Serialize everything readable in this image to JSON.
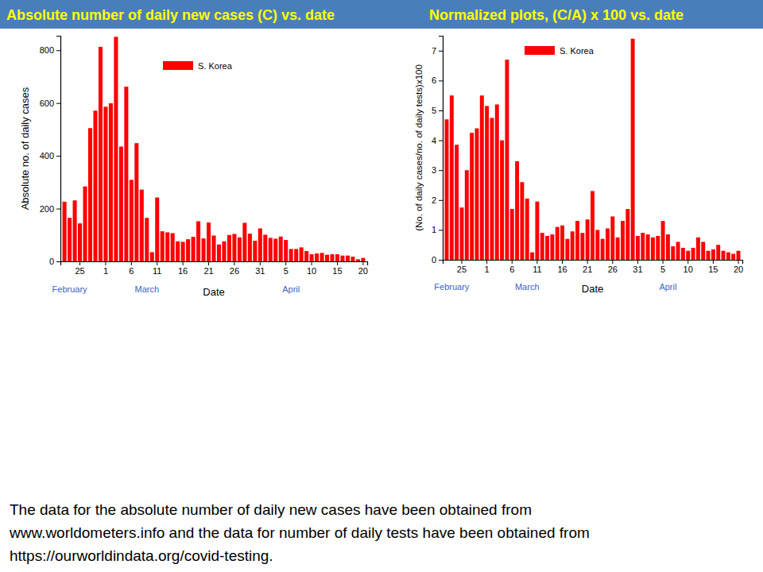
{
  "chart_data": [
    {
      "type": "bar",
      "title": "Absolute number of daily new cases (C) vs. date",
      "x_label": "Date",
      "y_label": "Absolute no. of daily cases",
      "categories": [
        null,
        null,
        null,
        "25",
        null,
        null,
        null,
        null,
        "1",
        null,
        null,
        null,
        null,
        "6",
        null,
        null,
        null,
        null,
        "11",
        null,
        null,
        null,
        null,
        "16",
        null,
        null,
        null,
        null,
        "21",
        null,
        null,
        null,
        null,
        "26",
        null,
        null,
        null,
        null,
        "31",
        null,
        null,
        null,
        null,
        "5",
        null,
        null,
        null,
        null,
        "10",
        null,
        null,
        null,
        null,
        "15",
        null,
        null,
        null,
        null,
        "20"
      ],
      "series": [
        {
          "name": "S. Korea",
          "color": "#ff0000",
          "values": [
            226,
            165,
            231,
            144,
            284,
            505,
            571,
            813,
            586,
            599,
            851,
            435,
            662,
            309,
            448,
            272,
            165,
            35,
            242,
            114,
            110,
            107,
            76,
            74,
            84,
            93,
            152,
            87,
            147,
            98,
            64,
            76,
            100,
            104,
            91,
            146,
            105,
            78,
            125,
            101,
            89,
            86,
            94,
            81,
            47,
            47,
            53,
            39,
            27,
            30,
            32,
            25,
            27,
            27,
            22,
            22,
            18,
            8,
            13
          ]
        }
      ],
      "ylim": [
        0,
        855
      ],
      "yticks": [
        0,
        200,
        400,
        600,
        800
      ],
      "grid": false,
      "legend": "top",
      "annotations": [
        "February",
        "March",
        "April"
      ]
    },
    {
      "type": "bar",
      "title": "Normalized plots, (C/A) x 100 vs. date",
      "x_label": "Date",
      "y_label": "(No. of daily cases/no. of daily tests)x100",
      "categories": [
        null,
        null,
        null,
        "25",
        null,
        null,
        null,
        null,
        "1",
        null,
        null,
        null,
        null,
        "6",
        null,
        null,
        null,
        null,
        "11",
        null,
        null,
        null,
        null,
        "16",
        null,
        null,
        null,
        null,
        "21",
        null,
        null,
        null,
        null,
        "26",
        null,
        null,
        null,
        null,
        "31",
        null,
        null,
        null,
        null,
        "5",
        null,
        null,
        null,
        null,
        "10",
        null,
        null,
        null,
        null,
        "15",
        null,
        null,
        null,
        null,
        "20"
      ],
      "series": [
        {
          "name": "S. Korea",
          "color": "#ff0000",
          "values": [
            4.7,
            5.5,
            3.85,
            1.75,
            3.0,
            4.25,
            4.4,
            5.5,
            5.15,
            4.75,
            5.2,
            4.0,
            6.7,
            1.7,
            3.3,
            2.6,
            2.05,
            0.25,
            1.95,
            0.9,
            0.8,
            0.85,
            1.1,
            1.15,
            0.7,
            0.95,
            1.3,
            0.9,
            1.35,
            2.3,
            1.0,
            0.7,
            1.05,
            1.45,
            0.75,
            1.3,
            1.7,
            7.4,
            0.8,
            0.9,
            0.85,
            0.75,
            0.8,
            1.3,
            0.85,
            0.45,
            0.6,
            0.4,
            0.3,
            0.4,
            0.75,
            0.6,
            0.3,
            0.35,
            0.5,
            0.3,
            0.25,
            0.2,
            0.3
          ]
        }
      ],
      "ylim": [
        0,
        7.5
      ],
      "yticks": [
        0,
        1,
        2,
        3,
        4,
        5,
        6,
        7
      ],
      "grid": false,
      "legend": "top-left",
      "annotations": [
        "February",
        "March",
        "April"
      ]
    }
  ],
  "footer_lines": [
    "The data for the absolute number of daily new cases have been obtained from",
    "www.worldometers.info and the data for number of daily tests have been obtained from",
    "https://ourworldindata.org/covid-testing."
  ]
}
